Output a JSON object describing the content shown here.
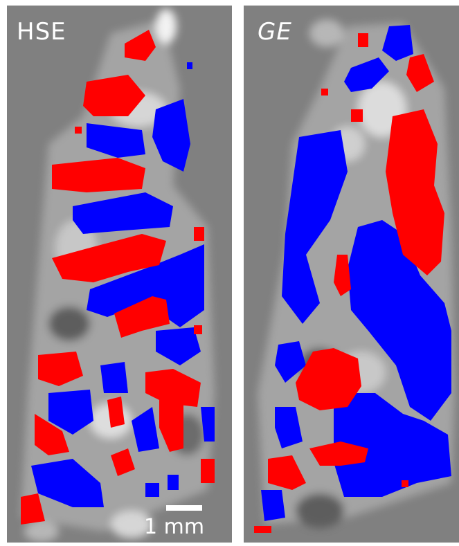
{
  "panels": [
    {
      "label": "HSE"
    },
    {
      "label": "GE"
    }
  ],
  "scale_bar": {
    "label": "1 mm"
  },
  "colors": {
    "background": "#808080",
    "positive": "#ff0000",
    "negative": "#0000ff",
    "border": "#ffffff"
  }
}
